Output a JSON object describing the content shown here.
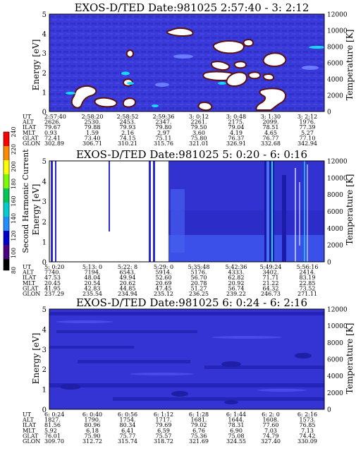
{
  "chart_data": [
    {
      "type": "heatmap",
      "title": "EXOS-D/TED   Date:981025  2:57:40 - 3: 2:12",
      "ylabel": "Energy [eV]",
      "ylabel_right": "Temperature [K]",
      "ylim": [
        0,
        5
      ],
      "ylim_right": [
        0,
        12000
      ],
      "yticks": [
        "0",
        "1",
        "2",
        "3",
        "4",
        "5"
      ],
      "yticks_right": [
        "0",
        "2000",
        "4000",
        "6000",
        "8000",
        "10000",
        "12000"
      ],
      "table_rows": [
        {
          "label": "UT",
          "values": [
            "2:57:40",
            "2:58:20",
            "2:58:52",
            "2:59:36",
            "3: 0:12",
            "3: 0:48",
            "3: 1:30",
            "3: 2:12"
          ]
        },
        {
          "label": "ALT",
          "values": [
            "2626.",
            "2530.",
            "2453.",
            "2347.",
            "2261.",
            "2175.",
            "2099.",
            "1976."
          ]
        },
        {
          "label": "ILAT",
          "values": [
            "79.67",
            "79.88",
            "79.93",
            "79.80",
            "79.50",
            "79.04",
            "78.51",
            "77.39"
          ]
        },
        {
          "label": "MLT",
          "values": [
            "0.93",
            "1.59",
            "2.16",
            "2.97",
            "3.60",
            "4.19",
            "4.65",
            "5.27"
          ]
        },
        {
          "label": "GLAT",
          "values": [
            "72.41",
            "73.40",
            "74.15",
            "75.11",
            "75.80",
            "76.37",
            "76.77",
            "77.10"
          ]
        },
        {
          "label": "GLON",
          "values": [
            "302.89",
            "306.71",
            "310.21",
            "315.76",
            "321.01",
            "326.91",
            "332.68",
            "342.94"
          ]
        }
      ]
    },
    {
      "type": "heatmap",
      "title": "EXOS-D/TED   Date:981025  5: 0:20 - 6: 0:16",
      "ylabel": "Energy [eV]",
      "ylabel_right": "Temperature [K]",
      "ylim": [
        0,
        5
      ],
      "ylim_right": [
        0,
        12000
      ],
      "yticks": [
        "0",
        "1",
        "2",
        "3",
        "4",
        "5"
      ],
      "yticks_right": [
        "0",
        "2000",
        "4000",
        "6000",
        "8000",
        "10000",
        "12000"
      ],
      "colorbar": {
        "label": "Second Harmonic Current",
        "ticks": [
          "80",
          "100",
          "120",
          "140",
          "160",
          "180",
          "200",
          "220",
          "240"
        ]
      },
      "table_rows": [
        {
          "label": "UT",
          "values": [
            "5: 0:20",
            "5:13: 0",
            "5:22: 8",
            "5:29: 0",
            "5:35:48",
            "5:42:36",
            "5:49:24",
            "5:56:16"
          ]
        },
        {
          "label": "ALT",
          "values": [
            "7740.",
            "7194.",
            "6543.",
            "5914.",
            "5176.",
            "4333.",
            "3402.",
            "2414."
          ]
        },
        {
          "label": "ILAT",
          "values": [
            "47.53",
            "48.04",
            "49.94",
            "52.60",
            "56.70",
            "62.82",
            "71.71",
            "83.19"
          ]
        },
        {
          "label": "MLT",
          "values": [
            "20.45",
            "20.54",
            "20.62",
            "20.69",
            "20.78",
            "20.92",
            "21.22",
            "22.85"
          ]
        },
        {
          "label": "GLAT",
          "values": [
            "41.95",
            "42.83",
            "44.85",
            "47.45",
            "51.27",
            "56.74",
            "64.32",
            "73.52"
          ]
        },
        {
          "label": "GLON",
          "values": [
            "237.29",
            "235.54",
            "234.94",
            "235.12",
            "236.25",
            "239.22",
            "246.73",
            "271.11"
          ]
        }
      ]
    },
    {
      "type": "heatmap",
      "title": "EXOS-D/TED   Date:981025  6: 0:24 - 6: 2:16",
      "ylabel": "Energy [eV]",
      "ylabel_right": "Temperature [K]",
      "ylim": [
        0,
        5
      ],
      "ylim_right": [
        0,
        12000
      ],
      "yticks": [
        "0",
        "1",
        "2",
        "3",
        "4",
        "5"
      ],
      "yticks_right": [
        "0",
        "2000",
        "4000",
        "6000",
        "8000",
        "10000",
        "12000"
      ],
      "table_rows": [
        {
          "label": "UT",
          "values": [
            "6: 0:24",
            "6: 0:40",
            "6: 0:56",
            "6: 1:12",
            "6: 1:28",
            "6: 1:44",
            "6: 2: 0",
            "6: 2:16"
          ]
        },
        {
          "label": "ALT",
          "values": [
            "1827.",
            "1790.",
            "1754.",
            "1717.",
            "1681.",
            "1644.",
            "1608.",
            "1573."
          ]
        },
        {
          "label": "ILAT",
          "values": [
            "81.56",
            "80.96",
            "80.34",
            "79.69",
            "79.02",
            "78.31",
            "77.60",
            "76.85"
          ]
        },
        {
          "label": "MLT",
          "values": [
            "5.92",
            "6.18",
            "6.41",
            "6.59",
            "6.76",
            "6.90",
            "7.03",
            "7.13"
          ]
        },
        {
          "label": "GLAT",
          "values": [
            "76.01",
            "75.90",
            "75.77",
            "75.57",
            "75.36",
            "75.08",
            "74.79",
            "74.42"
          ]
        },
        {
          "label": "GLON",
          "values": [
            "309.70",
            "312.72",
            "315.74",
            "318.72",
            "321.69",
            "324.55",
            "327.40",
            "330.09"
          ]
        }
      ]
    }
  ],
  "colors": {
    "background_blue": "#3a3ad8",
    "deep_blue": "#1c1ca8",
    "light_blue": "#6a7cff",
    "cyan": "#18d8ff",
    "white_patch": "#ffffff",
    "patch_edge": "#5a1010",
    "colorbar": [
      "#000000",
      "#4b0082",
      "#0000cd",
      "#1e90ff",
      "#00ced1",
      "#00c853",
      "#7cfc00",
      "#ffff00",
      "#ff8c00",
      "#ff0000"
    ]
  }
}
